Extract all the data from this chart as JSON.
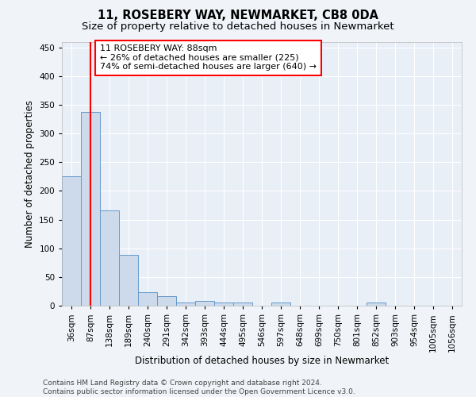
{
  "title": "11, ROSEBERY WAY, NEWMARKET, CB8 0DA",
  "subtitle": "Size of property relative to detached houses in Newmarket",
  "xlabel": "Distribution of detached houses by size in Newmarket",
  "ylabel": "Number of detached properties",
  "bin_labels": [
    "36sqm",
    "87sqm",
    "138sqm",
    "189sqm",
    "240sqm",
    "291sqm",
    "342sqm",
    "393sqm",
    "444sqm",
    "495sqm",
    "546sqm",
    "597sqm",
    "648sqm",
    "699sqm",
    "750sqm",
    "801sqm",
    "852sqm",
    "903sqm",
    "954sqm",
    "1005sqm",
    "1056sqm"
  ],
  "bar_values": [
    226,
    337,
    166,
    89,
    23,
    17,
    6,
    8,
    5,
    5,
    0,
    5,
    0,
    0,
    0,
    0,
    5,
    0,
    0,
    0,
    0
  ],
  "bar_color": "#cddaeb",
  "bar_edge_color": "#6699cc",
  "red_line_x": 1,
  "annotation_line1": "11 ROSEBERY WAY: 88sqm",
  "annotation_line2": "← 26% of detached houses are smaller (225)",
  "annotation_line3": "74% of semi-detached houses are larger (640) →",
  "annotation_box_color": "white",
  "annotation_box_edge": "red",
  "ylim": [
    0,
    460
  ],
  "yticks": [
    0,
    50,
    100,
    150,
    200,
    250,
    300,
    350,
    400,
    450
  ],
  "footer_text": "Contains HM Land Registry data © Crown copyright and database right 2024.\nContains public sector information licensed under the Open Government Licence v3.0.",
  "bg_color": "#f0f4f8",
  "plot_bg_color": "#e8eff7",
  "grid_color": "white",
  "title_fontsize": 10.5,
  "subtitle_fontsize": 9.5,
  "axis_label_fontsize": 8.5,
  "tick_fontsize": 7.5,
  "annotation_fontsize": 8,
  "footer_fontsize": 6.5
}
